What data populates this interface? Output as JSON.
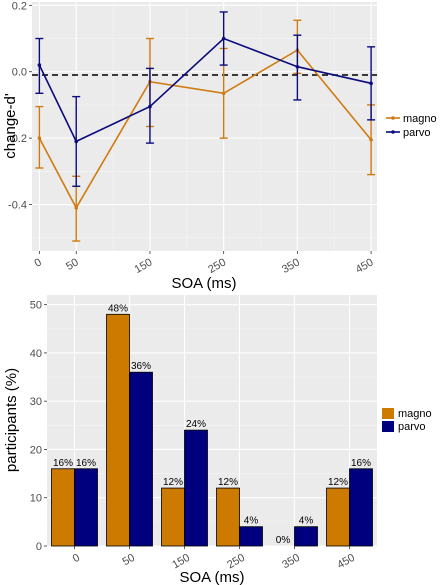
{
  "chart_data": [
    {
      "type": "line",
      "title": "",
      "xlabel": "SOA (ms)",
      "ylabel": "change-d'",
      "x": [
        0,
        50,
        150,
        250,
        350,
        450
      ],
      "x_tick_labels": [
        "0",
        "50",
        "150",
        "250",
        "350",
        "450"
      ],
      "ylim": [
        -0.54,
        0.21
      ],
      "y_ticks": [
        -0.4,
        -0.2,
        0.0,
        0.2
      ],
      "y_tick_labels": [
        "-0.4",
        "-0.2",
        "0.0",
        "0.2"
      ],
      "reference_line": 0,
      "grid": true,
      "legend_position": "right",
      "series": [
        {
          "name": "magno",
          "color": "#d07b11",
          "values": [
            -0.2,
            -0.41,
            -0.03,
            -0.065,
            0.065,
            -0.205
          ],
          "err_low": [
            -0.29,
            -0.51,
            -0.165,
            -0.2,
            -0.005,
            -0.31
          ],
          "err_high": [
            -0.105,
            -0.315,
            0.1,
            0.07,
            0.155,
            -0.1
          ]
        },
        {
          "name": "parvo",
          "color": "#0b0b7e",
          "values": [
            0.02,
            -0.21,
            -0.105,
            0.1,
            0.015,
            -0.035
          ],
          "err_low": [
            -0.065,
            -0.345,
            -0.215,
            0.02,
            -0.085,
            -0.145
          ],
          "err_high": [
            0.1,
            -0.075,
            0.01,
            0.18,
            0.11,
            0.075
          ]
        }
      ]
    },
    {
      "type": "bar",
      "title": "",
      "xlabel": "SOA (ms)",
      "ylabel": "participants (%)",
      "categories": [
        "0",
        "50",
        "150",
        "250",
        "350",
        "450"
      ],
      "ylim": [
        0,
        52
      ],
      "y_ticks": [
        0,
        10,
        20,
        30,
        40,
        50
      ],
      "y_tick_labels": [
        "0",
        "10",
        "20",
        "30",
        "40",
        "50"
      ],
      "grid": true,
      "legend_position": "right",
      "series": [
        {
          "name": "magno",
          "color": "#cc7a00",
          "values": [
            16,
            48,
            12,
            12,
            0,
            12
          ],
          "labels": [
            "16%",
            "48%",
            "12%",
            "12%",
            "0%",
            "12%"
          ]
        },
        {
          "name": "parvo",
          "color": "#00007f",
          "values": [
            16,
            36,
            24,
            4,
            4,
            16
          ],
          "labels": [
            "16%",
            "36%",
            "24%",
            "4%",
            "4%",
            "16%"
          ]
        }
      ]
    }
  ]
}
